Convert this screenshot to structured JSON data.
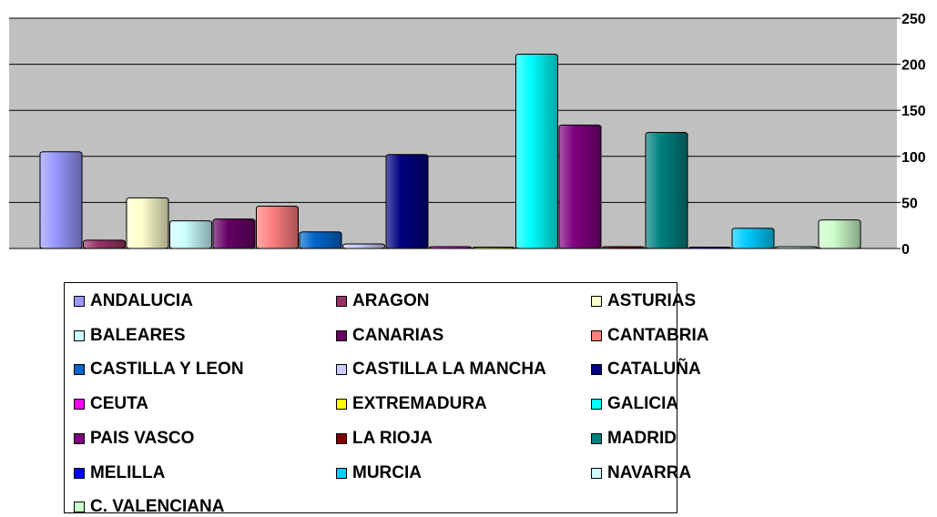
{
  "chart_data": {
    "type": "bar",
    "title": "",
    "xlabel": "",
    "ylabel": "",
    "ylim": [
      0,
      250
    ],
    "yticks": [
      "0",
      "50",
      "100",
      "150",
      "200",
      "250"
    ],
    "grid": true,
    "plot_background": "#C0C0C0",
    "legend_position": "bottom",
    "series": [
      {
        "name": "ANDALUCIA",
        "value": 105,
        "color": "#9999FF"
      },
      {
        "name": "ARAGON",
        "value": 9,
        "color": "#993366"
      },
      {
        "name": "ASTURIAS",
        "value": 55,
        "color": "#FFFFCC"
      },
      {
        "name": "BALEARES",
        "value": 30,
        "color": "#CCFFFF"
      },
      {
        "name": "CANARIAS",
        "value": 32,
        "color": "#660066"
      },
      {
        "name": "CANTABRIA",
        "value": 46,
        "color": "#FF8080"
      },
      {
        "name": "CASTILLA Y LEON",
        "value": 18,
        "color": "#0066CC"
      },
      {
        "name": "CASTILLA LA MANCHA",
        "value": 5,
        "color": "#CCCCFF"
      },
      {
        "name": "CATALUÑA",
        "value": 102,
        "color": "#000080"
      },
      {
        "name": "CEUTA",
        "value": 2,
        "color": "#FF00FF"
      },
      {
        "name": "EXTREMADURA",
        "value": 1,
        "color": "#FFFF00"
      },
      {
        "name": "GALICIA",
        "value": 211,
        "color": "#00FFFF"
      },
      {
        "name": "PAIS VASCO",
        "value": 134,
        "color": "#800080"
      },
      {
        "name": "LA RIOJA",
        "value": 2,
        "color": "#800000"
      },
      {
        "name": "MADRID",
        "value": 126,
        "color": "#008080"
      },
      {
        "name": "MELILLA",
        "value": 1,
        "color": "#0000FF"
      },
      {
        "name": "MURCIA",
        "value": 22,
        "color": "#00CCFF"
      },
      {
        "name": "NAVARRA",
        "value": 2,
        "color": "#CCFFFF"
      },
      {
        "name": "C. VALENCIANA",
        "value": 31,
        "color": "#CCFFCC"
      }
    ]
  }
}
